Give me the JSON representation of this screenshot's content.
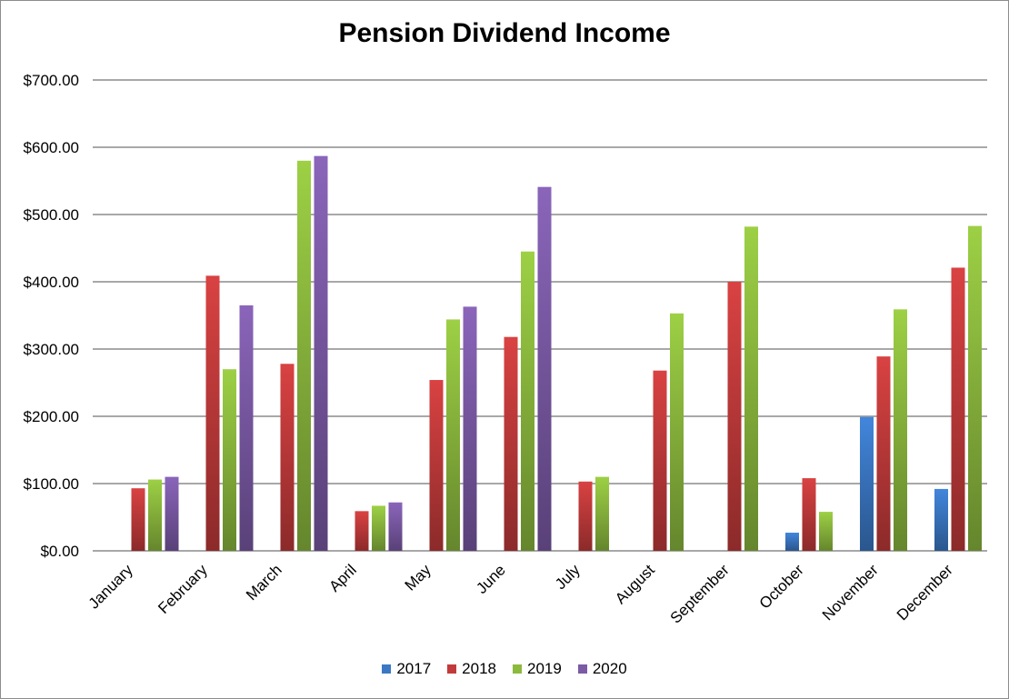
{
  "chart_data": {
    "type": "bar",
    "title": "Pension Dividend Income",
    "xlabel": "",
    "ylabel": "",
    "ylim": [
      0,
      700
    ],
    "yticks": [
      0,
      100,
      200,
      300,
      400,
      500,
      600,
      700
    ],
    "ytick_labels": [
      "$0.00",
      "$100.00",
      "$200.00",
      "$300.00",
      "$400.00",
      "$500.00",
      "$600.00",
      "$700.00"
    ],
    "categories": [
      "January",
      "February",
      "March",
      "April",
      "May",
      "June",
      "July",
      "August",
      "September",
      "October",
      "November",
      "December"
    ],
    "series": [
      {
        "name": "2017",
        "color": "#3b78c4",
        "values": [
          null,
          null,
          null,
          null,
          null,
          null,
          null,
          null,
          null,
          27,
          199,
          92
        ]
      },
      {
        "name": "2018",
        "color": "#c23b3b",
        "values": [
          93,
          409,
          278,
          59,
          254,
          318,
          103,
          268,
          400,
          108,
          289,
          421
        ]
      },
      {
        "name": "2019",
        "color": "#8cba3e",
        "values": [
          106,
          270,
          580,
          67,
          344,
          445,
          110,
          353,
          482,
          58,
          359,
          483
        ]
      },
      {
        "name": "2020",
        "color": "#7b5aa6",
        "values": [
          110,
          365,
          587,
          72,
          363,
          541,
          null,
          null,
          null,
          null,
          null,
          null
        ]
      }
    ],
    "grid": true,
    "legend_position": "bottom"
  }
}
